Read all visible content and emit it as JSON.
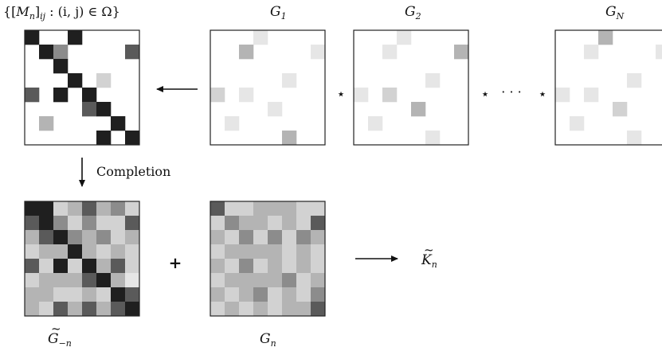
{
  "labels": {
    "observed": {
      "pre": "{[",
      "M": "M",
      "n": "n",
      "mid": "]",
      "ij": "ij",
      "rest": " : (i, j) ∈ Ω}"
    },
    "g1": {
      "base": "G",
      "sub": "1"
    },
    "g2": {
      "base": "G",
      "sub": "2"
    },
    "gN": {
      "base": "G",
      "sub": "N"
    },
    "gminus": {
      "base": "G",
      "tilde": "~",
      "sub": "−n"
    },
    "gn": {
      "base": "G",
      "sub": "n"
    },
    "kn": {
      "base": "K",
      "tilde": "~",
      "sub": "n"
    },
    "completion": "Completion"
  },
  "operators": {
    "star": "⋆",
    "dots": "· · ·",
    "plus": "+"
  },
  "colors": {
    "frame": "#222222",
    "black": "#1f1f1f",
    "dark": "#5a5a5a",
    "mid": "#8c8c8c",
    "light": "#b4b4b4",
    "pale": "#d2d2d2",
    "faint": "#e6e6e6"
  },
  "matrices": {
    "observed": {
      "size": 8,
      "cells": [
        [
          0,
          0,
          "black"
        ],
        [
          0,
          3,
          "black"
        ],
        [
          1,
          1,
          "black"
        ],
        [
          1,
          2,
          "mid"
        ],
        [
          1,
          7,
          "dark"
        ],
        [
          2,
          2,
          "black"
        ],
        [
          3,
          3,
          "black"
        ],
        [
          3,
          5,
          "pale"
        ],
        [
          4,
          0,
          "dark"
        ],
        [
          4,
          2,
          "black"
        ],
        [
          4,
          4,
          "black"
        ],
        [
          5,
          4,
          "dark"
        ],
        [
          5,
          5,
          "black"
        ],
        [
          6,
          1,
          "light"
        ],
        [
          6,
          6,
          "black"
        ],
        [
          7,
          5,
          "black"
        ],
        [
          7,
          7,
          "black"
        ]
      ]
    },
    "g1": {
      "size": 8,
      "cells": [
        [
          0,
          3,
          "faint"
        ],
        [
          1,
          2,
          "light"
        ],
        [
          1,
          7,
          "faint"
        ],
        [
          3,
          5,
          "faint"
        ],
        [
          4,
          0,
          "pale"
        ],
        [
          4,
          2,
          "faint"
        ],
        [
          5,
          4,
          "faint"
        ],
        [
          6,
          1,
          "faint"
        ],
        [
          7,
          5,
          "light"
        ]
      ]
    },
    "g2": {
      "size": 8,
      "cells": [
        [
          0,
          3,
          "faint"
        ],
        [
          1,
          2,
          "faint"
        ],
        [
          1,
          7,
          "light"
        ],
        [
          3,
          5,
          "faint"
        ],
        [
          4,
          0,
          "faint"
        ],
        [
          4,
          2,
          "pale"
        ],
        [
          5,
          4,
          "light"
        ],
        [
          6,
          1,
          "faint"
        ],
        [
          7,
          5,
          "faint"
        ]
      ]
    },
    "gN": {
      "size": 8,
      "cells": [
        [
          0,
          3,
          "light"
        ],
        [
          1,
          2,
          "faint"
        ],
        [
          1,
          7,
          "faint"
        ],
        [
          3,
          5,
          "faint"
        ],
        [
          4,
          0,
          "faint"
        ],
        [
          4,
          2,
          "faint"
        ],
        [
          5,
          4,
          "pale"
        ],
        [
          6,
          1,
          "faint"
        ],
        [
          7,
          5,
          "faint"
        ]
      ]
    },
    "completed": {
      "size": 8,
      "grid": [
        [
          "black",
          "black",
          "pale",
          "light",
          "dark",
          "light",
          "mid",
          "pale"
        ],
        [
          "dark",
          "black",
          "mid",
          "pale",
          "mid",
          "pale",
          "pale",
          "dark"
        ],
        [
          "light",
          "dark",
          "black",
          "mid",
          "light",
          "mid",
          "pale",
          "light"
        ],
        [
          "pale",
          "light",
          "light",
          "black",
          "light",
          "pale",
          "light",
          "pale"
        ],
        [
          "dark",
          "pale",
          "black",
          "pale",
          "black",
          "light",
          "dark",
          "pale"
        ],
        [
          "pale",
          "light",
          "light",
          "light",
          "dark",
          "black",
          "light",
          "faint"
        ],
        [
          "light",
          "light",
          "pale",
          "pale",
          "light",
          "pale",
          "black",
          "dark"
        ],
        [
          "light",
          "pale",
          "dark",
          "light",
          "dark",
          "light",
          "dark",
          "black"
        ]
      ]
    },
    "gn": {
      "size": 8,
      "grid": [
        [
          "dark",
          "pale",
          "pale",
          "light",
          "light",
          "light",
          "pale",
          "pale"
        ],
        [
          "pale",
          "mid",
          "light",
          "light",
          "pale",
          "light",
          "pale",
          "dark"
        ],
        [
          "light",
          "pale",
          "mid",
          "pale",
          "mid",
          "pale",
          "mid",
          "light"
        ],
        [
          "pale",
          "light",
          "light",
          "light",
          "light",
          "pale",
          "light",
          "pale"
        ],
        [
          "light",
          "pale",
          "mid",
          "pale",
          "light",
          "pale",
          "light",
          "pale"
        ],
        [
          "pale",
          "light",
          "light",
          "light",
          "light",
          "mid",
          "pale",
          "light"
        ],
        [
          "light",
          "pale",
          "light",
          "mid",
          "pale",
          "light",
          "pale",
          "mid"
        ],
        [
          "pale",
          "light",
          "pale",
          "light",
          "pale",
          "light",
          "light",
          "dark"
        ]
      ]
    }
  }
}
